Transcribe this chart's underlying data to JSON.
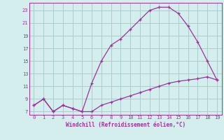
{
  "xlabel": "Windchill (Refroidissement éolien,°C)",
  "background_color": "#d4eeee",
  "line_color": "#993399",
  "grid_color": "#aacccc",
  "x_line1": [
    0,
    1,
    2,
    3,
    4,
    5,
    6,
    7,
    8,
    9,
    10,
    11,
    12,
    13,
    14,
    15,
    16,
    17,
    18,
    19
  ],
  "y_line1": [
    8.0,
    9.0,
    7.0,
    8.0,
    7.5,
    7.0,
    7.0,
    8.0,
    8.5,
    9.0,
    9.5,
    10.0,
    10.5,
    11.0,
    11.5,
    11.8,
    12.0,
    12.2,
    12.5,
    12.0
  ],
  "x_line2": [
    0,
    1,
    2,
    3,
    4,
    5,
    6,
    7,
    8,
    9,
    10,
    11,
    12,
    13,
    14,
    15,
    16,
    17,
    18,
    19
  ],
  "y_line2": [
    8.0,
    9.0,
    7.0,
    8.0,
    7.5,
    7.0,
    11.5,
    15.0,
    17.5,
    18.5,
    20.0,
    21.5,
    23.0,
    23.5,
    23.5,
    22.5,
    20.5,
    18.0,
    15.0,
    12.0
  ],
  "xlim": [
    -0.5,
    19.5
  ],
  "ylim": [
    6.5,
    24.2
  ],
  "yticks": [
    7,
    9,
    11,
    13,
    15,
    17,
    19,
    21,
    23
  ],
  "xticks": [
    0,
    1,
    2,
    3,
    4,
    5,
    6,
    7,
    8,
    9,
    10,
    11,
    12,
    13,
    14,
    15,
    16,
    17,
    18,
    19
  ]
}
